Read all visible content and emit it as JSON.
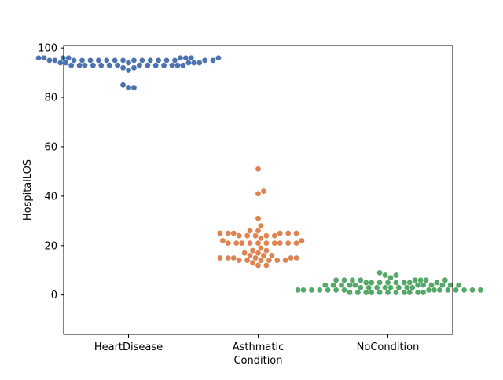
{
  "chart_data": {
    "type": "scatter",
    "subtype": "swarm",
    "xlabel": "Condition",
    "ylabel": "HospitalLOS",
    "ylim": [
      -16,
      101
    ],
    "yticks": [
      0,
      20,
      40,
      60,
      80,
      100
    ],
    "grid": false,
    "categories": [
      "HeartDisease",
      "Asthmatic",
      "NoCondition"
    ],
    "colors": [
      "#4c72b0",
      "#dd8452",
      "#55a868"
    ],
    "series": [
      {
        "category": "HeartDisease",
        "values": [
          96,
          96,
          96,
          96,
          96,
          96,
          96,
          96,
          95,
          95,
          95,
          95,
          95,
          95,
          95,
          95,
          95,
          95,
          95,
          95,
          95,
          95,
          95,
          95,
          95,
          94,
          94,
          94,
          94,
          94,
          94,
          93,
          93,
          93,
          93,
          93,
          93,
          93,
          93,
          93,
          93,
          93,
          93,
          93,
          93,
          92,
          92,
          91,
          85,
          84,
          84
        ]
      },
      {
        "category": "Asthmatic",
        "values": [
          51,
          42,
          41,
          31,
          28,
          26,
          26,
          25,
          25,
          25,
          25,
          25,
          25,
          24,
          24,
          24,
          24,
          24,
          23,
          22,
          22,
          21,
          21,
          21,
          21,
          21,
          21,
          21,
          21,
          21,
          21,
          19,
          18,
          18,
          17,
          17,
          16,
          16,
          16,
          15,
          15,
          15,
          15,
          15,
          15,
          14,
          14,
          14,
          14,
          14,
          14,
          13,
          12,
          12
        ]
      },
      {
        "category": "NoCondition",
        "values": [
          9,
          8,
          8,
          7,
          6,
          6,
          6,
          6,
          6,
          6,
          6,
          6,
          5,
          5,
          5,
          5,
          5,
          5,
          5,
          5,
          4,
          4,
          4,
          4,
          4,
          4,
          4,
          4,
          4,
          4,
          4,
          3,
          3,
          3,
          3,
          3,
          3,
          3,
          3,
          2,
          2,
          2,
          2,
          2,
          2,
          2,
          2,
          2,
          2,
          2,
          2,
          2,
          2,
          2,
          1,
          1,
          1,
          1,
          1,
          1,
          1,
          1,
          1,
          1,
          1
        ]
      }
    ]
  }
}
